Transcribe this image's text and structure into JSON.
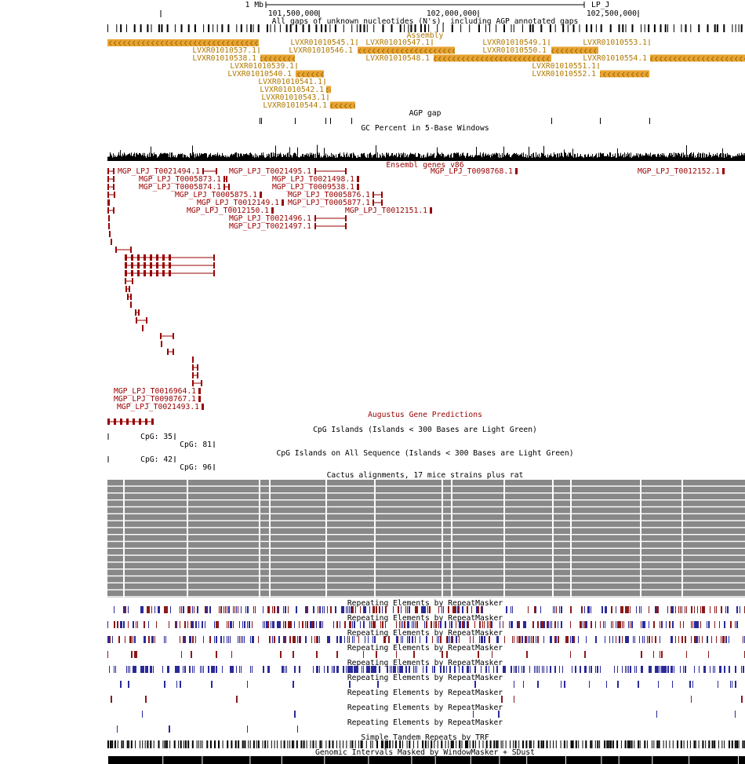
{
  "ruler": {
    "scale": "1 Mb",
    "chrom": "LP_J",
    "ticks": [
      "101,500,000",
      "102,000,000",
      "102,500,000"
    ]
  },
  "gap": {
    "title": "All gaps of unknown nucleotides (N's), including AGP annotated gaps"
  },
  "assembly": {
    "title": "Assembly",
    "items": [
      "LVXR01010545.1",
      "LVXR01010547.1",
      "LVXR01010549.1",
      "LVXR01010553.1",
      "LVXR01010537.1",
      "LVXR01010546.1",
      "LVXR01010550.1",
      "LVXR01010538.1",
      "LVXR01010548.1",
      "LVXR01010554.1",
      "LVXR01010539.1",
      "LVXR01010551.1",
      "LVXR01010540.1",
      "LVXR01010552.1",
      "LVXR01010541.1",
      "LVXR01010542.1",
      "LVXR01010543.1",
      "LVXR01010544.1"
    ]
  },
  "agp_gap": {
    "title": "AGP gap"
  },
  "gc": {
    "title": "GC Percent in 5-Base Windows"
  },
  "ensembl": {
    "title": "Ensembl genes v86",
    "items": [
      "MGP_LPJ_T0021494.1",
      "MGP_LPJ_T0021495.1",
      "MGP_LPJ_T0098768.1",
      "MGP_LPJ_T0012152.1",
      "MGP_LPJ_T0005873.1",
      "MGP_LPJ_T0021498.1",
      "MGP_LPJ_T0005874.1",
      "MGP_LPJ_T0009538.1",
      "MGP_LPJ_T0005875.1",
      "MGP_LPJ_T0005876.1",
      "MGP_LPJ_T0012149.1",
      "MGP_LPJ_T0005877.1",
      "MGP_LPJ_T0012150.1",
      "MGP_LPJ_T0012151.1",
      "MGP_LPJ_T0021496.1",
      "MGP_LPJ_T0021497.1",
      "MGP_LPJ_T0016964.1",
      "MGP_LPJ_T0098767.1",
      "MGP_LPJ_T0021493.1"
    ]
  },
  "augustus": {
    "title": "Augustus Gene Predictions"
  },
  "cpg": {
    "title": "CpG Islands (Islands < 300 Bases are Light Green)",
    "items": [
      "CpG: 35",
      "CpG: 81"
    ]
  },
  "cpg_all": {
    "title": "CpG Islands on All Sequence (Islands < 300 Bases are Light Green)",
    "items": [
      "CpG: 42",
      "CpG: 96"
    ]
  },
  "cactus": {
    "title": "Cactus alignments, 17 mice strains plus rat"
  },
  "repeats": {
    "titles": [
      "Repeating Elements by RepeatMasker",
      "Repeating Elements by RepeatMasker",
      "Repeating Elements by RepeatMasker",
      "Repeating Elements by RepeatMasker",
      "Repeating Elements by RepeatMasker",
      "Repeating Elements by RepeatMasker",
      "Repeating Elements by RepeatMasker",
      "Repeating Elements by RepeatMasker",
      "Repeating Elements by RepeatMasker"
    ]
  },
  "trf": {
    "title": "Simple Tandem Repeats by TRF"
  },
  "windowmasker": {
    "title": "Genomic Intervals Masked by WindowMasker + SDust"
  }
}
